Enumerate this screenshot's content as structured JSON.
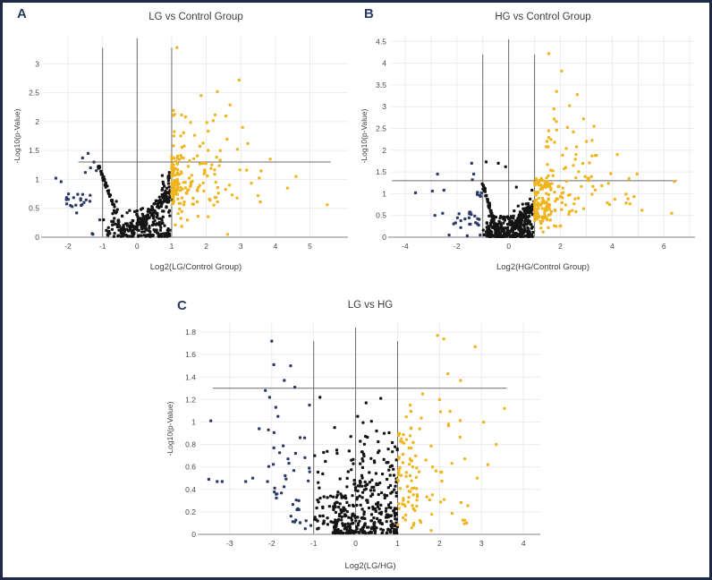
{
  "figure": {
    "border_color": "#202945",
    "background_color": "#ffffff"
  },
  "styles": {
    "grid": "#ececec",
    "threshold_line": "#6b6b6b",
    "axis": "#9b9b9b",
    "tick_text": "#4a4a4a",
    "title_text": "#3c3c3c",
    "letter_text": "#2b3a64",
    "up_color": "#F0B51E",
    "down_color": "#2B3A66",
    "ns_color": "#141414"
  },
  "chart_data": [
    {
      "type": "scatter",
      "letter": "A",
      "title": "LG vs Control Group",
      "xlabel": "Log2(LG/Control Group)",
      "ylabel": "-Log10(p-Value)",
      "xlim": [
        -2.7,
        6.1
      ],
      "ylim": [
        0,
        3.5
      ],
      "xticks": [
        -2,
        -1,
        0,
        1,
        2,
        3,
        4,
        5
      ],
      "yticks": [
        0,
        0.5,
        1,
        1.5,
        2,
        2.5,
        3
      ],
      "xgrid": [
        -2,
        -1,
        0,
        1,
        2,
        3,
        4,
        5
      ],
      "fold_change_lines_x": [
        -1,
        0,
        1
      ],
      "significance_line_y": 1.3,
      "vlines": [
        {
          "x": -1,
          "ytop": 3.28
        },
        {
          "x": 0,
          "ytop": 3.44
        },
        {
          "x": 1,
          "ytop": 3.28
        }
      ],
      "hline": {
        "y": 1.3,
        "x0": -1.7,
        "x1": 5.6
      },
      "seed": 11,
      "series": [
        {
          "name": "non-significant",
          "color": "#141414",
          "clusters": [
            {
              "t": "curve",
              "n": 60,
              "x0": -1.12,
              "x1": -0.4,
              "ya": 1.22,
              "yb": 0.02,
              "pw": 1.15,
              "jx": 0.04,
              "jy": 0.05
            },
            {
              "t": "band",
              "n": 150,
              "x0": -0.75,
              "x1": 0.95,
              "y0": 0.01,
              "y1": 0.5,
              "px": 1,
              "py": 1.9
            },
            {
              "t": "curve",
              "n": 85,
              "x0": -0.05,
              "x1": 0.97,
              "ya": 0.18,
              "yb": 0.78,
              "pw": 1,
              "jx": 0.06,
              "jy": 0.14
            },
            {
              "t": "blob",
              "n": 40,
              "cx": 0.85,
              "cy": 0.8,
              "sx": 0.1,
              "sy": 0.2
            },
            {
              "t": "band",
              "n": 35,
              "x0": -0.9,
              "x1": 0.5,
              "y0": 0.01,
              "y1": 0.28,
              "px": 1,
              "py": 1.4
            }
          ],
          "points": [
            [
              -1.3,
              0.06
            ],
            [
              -0.97,
              0.3
            ],
            [
              0.93,
              1.12
            ],
            [
              0.9,
              1.05
            ],
            [
              -0.6,
              0.62
            ]
          ]
        },
        {
          "name": "downregulated",
          "color": "#2B3A66",
          "clusters": [
            {
              "t": "band",
              "n": 13,
              "x0": -2.05,
              "x1": -1.35,
              "y0": 0.5,
              "y1": 0.8,
              "px": 1,
              "py": 1
            },
            {
              "t": "blob",
              "n": 5,
              "cx": -1.55,
              "cy": 0.62,
              "sx": 0.1,
              "sy": 0.04
            }
          ],
          "points": [
            [
              -1.42,
              1.45
            ],
            [
              -1.58,
              1.37
            ],
            [
              -1.25,
              1.3
            ],
            [
              -2.35,
              1.02
            ],
            [
              -2.2,
              0.96
            ],
            [
              -1.5,
              1.12
            ],
            [
              -1.35,
              1.2
            ],
            [
              -1.18,
              1.15
            ],
            [
              -1.28,
              0.05
            ],
            [
              -1.08,
              0.3
            ],
            [
              -1.75,
              0.42
            ],
            [
              -1.62,
              0.55
            ]
          ]
        },
        {
          "name": "upregulated",
          "color": "#F0B51E",
          "clusters": [
            {
              "t": "band",
              "n": 115,
              "x0": 1.0,
              "x1": 2.35,
              "y0": 0.55,
              "y1": 1.42,
              "px": 1.9,
              "py": 1.1
            },
            {
              "t": "band",
              "n": 40,
              "x0": 1.0,
              "x1": 1.18,
              "y0": 0.6,
              "y1": 1.35,
              "px": 1,
              "py": 1
            },
            {
              "t": "band",
              "n": 26,
              "x0": 1.05,
              "x1": 2.95,
              "y0": 1.45,
              "y1": 2.35,
              "px": 1.5,
              "py": 1.4
            },
            {
              "t": "band",
              "n": 13,
              "x0": 2.3,
              "x1": 3.8,
              "y0": 0.6,
              "y1": 1.35,
              "px": 1,
              "py": 1
            },
            {
              "t": "band",
              "n": 9,
              "x0": 1.1,
              "x1": 2.4,
              "y0": 0.1,
              "y1": 0.5,
              "px": 1.4,
              "py": 1
            }
          ],
          "points": [
            [
              1.15,
              3.28
            ],
            [
              2.95,
              2.72
            ],
            [
              2.32,
              2.52
            ],
            [
              1.85,
              2.45
            ],
            [
              4.6,
              1.05
            ],
            [
              5.5,
              0.56
            ],
            [
              3.85,
              1.35
            ],
            [
              4.35,
              0.85
            ],
            [
              2.62,
              0.05
            ],
            [
              3.2,
              1.62
            ],
            [
              3.5,
              0.72
            ],
            [
              3.05,
              1.9
            ]
          ]
        }
      ]
    },
    {
      "type": "scatter",
      "letter": "B",
      "title": "HG vs Control Group",
      "xlabel": "Log2(HG/Control Group)",
      "ylabel": "-Log10(p-Value)",
      "xlim": [
        -4.55,
        7.2
      ],
      "ylim": [
        0,
        4.65
      ],
      "xticks": [
        -4,
        -2,
        0,
        2,
        4,
        6
      ],
      "yticks": [
        0,
        0.5,
        1,
        1.5,
        2,
        2.5,
        3,
        3.5,
        4,
        4.5
      ],
      "xgrid": [
        -4,
        -3,
        -2,
        -1,
        0,
        1,
        2,
        3,
        4,
        5,
        6,
        7
      ],
      "fold_change_lines_x": [
        -1,
        0,
        1
      ],
      "significance_line_y": 1.3,
      "vlines": [
        {
          "x": -1,
          "ytop": 4.2
        },
        {
          "x": 0,
          "ytop": 4.55
        },
        {
          "x": 1,
          "ytop": 4.2
        }
      ],
      "hline": {
        "y": 1.3,
        "x0": -4.5,
        "x1": 6.5
      },
      "seed": 23,
      "series": [
        {
          "name": "non-significant",
          "color": "#141414",
          "clusters": [
            {
              "t": "curve",
              "n": 55,
              "x0": -1.05,
              "x1": -0.42,
              "ya": 1.25,
              "yb": 0.02,
              "pw": 1.15,
              "jx": 0.04,
              "jy": 0.05
            },
            {
              "t": "band",
              "n": 220,
              "x0": -0.85,
              "x1": 0.95,
              "y0": 0.01,
              "y1": 0.5,
              "px": 1,
              "py": 2.0
            },
            {
              "t": "curve",
              "n": 75,
              "x0": -0.05,
              "x1": 0.95,
              "ya": 0.12,
              "yb": 0.72,
              "pw": 1,
              "jx": 0.06,
              "jy": 0.15
            },
            {
              "t": "blob",
              "n": 30,
              "cx": 0.6,
              "cy": 0.62,
              "sx": 0.22,
              "sy": 0.18
            },
            {
              "t": "band",
              "n": 25,
              "x0": -1.0,
              "x1": -0.25,
              "y0": 0.01,
              "y1": 0.25,
              "px": 1,
              "py": 1.5
            }
          ],
          "points": [
            [
              -0.87,
              1.73
            ],
            [
              -0.4,
              1.7
            ],
            [
              -0.12,
              1.62
            ],
            [
              0.9,
              1.08
            ],
            [
              0.3,
              1.15
            ]
          ]
        },
        {
          "name": "downregulated",
          "color": "#2B3A66",
          "clusters": [
            {
              "t": "band",
              "n": 11,
              "x0": -1.55,
              "x1": -1.05,
              "y0": 0.25,
              "y1": 0.6,
              "px": 1,
              "py": 1
            },
            {
              "t": "band",
              "n": 7,
              "x0": -2.2,
              "x1": -1.5,
              "y0": 0.3,
              "y1": 0.7,
              "px": 1,
              "py": 1
            },
            {
              "t": "band",
              "n": 6,
              "x0": -1.25,
              "x1": -1.05,
              "y0": 0.8,
              "y1": 1.28,
              "px": 1,
              "py": 1
            }
          ],
          "points": [
            [
              -3.6,
              1.02
            ],
            [
              -2.75,
              1.45
            ],
            [
              -2.95,
              1.06
            ],
            [
              -2.5,
              1.08
            ],
            [
              -2.85,
              0.5
            ],
            [
              -2.55,
              0.55
            ],
            [
              -1.43,
              1.7
            ],
            [
              -1.35,
              1.45
            ],
            [
              -1.4,
              1.32
            ],
            [
              -2.3,
              0.05
            ],
            [
              -1.6,
              0.03
            ],
            [
              -1.85,
              0.22
            ],
            [
              -2.05,
              0.33
            ],
            [
              -1.1,
              0.05
            ]
          ]
        },
        {
          "name": "upregulated",
          "color": "#F0B51E",
          "clusters": [
            {
              "t": "band",
              "n": 100,
              "x0": 1.0,
              "x1": 1.65,
              "y0": 0.35,
              "y1": 1.35,
              "px": 1.5,
              "py": 1
            },
            {
              "t": "band",
              "n": 55,
              "x0": 1.4,
              "x1": 3.3,
              "y0": 0.5,
              "y1": 1.5,
              "px": 1.4,
              "py": 1
            },
            {
              "t": "band",
              "n": 30,
              "x0": 1.4,
              "x1": 3.4,
              "y0": 1.5,
              "y1": 2.9,
              "px": 1.3,
              "py": 1.5
            },
            {
              "t": "band",
              "n": 12,
              "x0": 3.3,
              "x1": 5.0,
              "y0": 0.6,
              "y1": 1.5,
              "px": 1,
              "py": 1
            },
            {
              "t": "band",
              "n": 8,
              "x0": 1.2,
              "x1": 2.6,
              "y0": 0.05,
              "y1": 0.35,
              "px": 1.3,
              "py": 1
            }
          ],
          "points": [
            [
              1.55,
              4.22
            ],
            [
              2.05,
              3.82
            ],
            [
              1.85,
              3.35
            ],
            [
              2.65,
              3.28
            ],
            [
              2.35,
              3.02
            ],
            [
              1.75,
              2.95
            ],
            [
              3.3,
              2.55
            ],
            [
              2.5,
              2.42
            ],
            [
              4.2,
              1.9
            ],
            [
              4.65,
              1.35
            ],
            [
              6.4,
              1.28
            ],
            [
              5.15,
              0.62
            ],
            [
              6.3,
              0.55
            ],
            [
              3.9,
              0.75
            ],
            [
              2.6,
              1.9
            ],
            [
              3.0,
              2.2
            ]
          ]
        }
      ]
    },
    {
      "type": "scatter",
      "letter": "C",
      "title": "LG vs HG",
      "xlabel": "Log2(LG/HG)",
      "ylabel": "-Log10(p-Value)",
      "xlim": [
        -3.7,
        4.4
      ],
      "ylim": [
        0,
        1.88
      ],
      "xticks": [
        -3,
        -2,
        -1,
        0,
        1,
        2,
        3,
        4
      ],
      "yticks": [
        0,
        0.2,
        0.4,
        0.6,
        0.8,
        1,
        1.2,
        1.4,
        1.6,
        1.8
      ],
      "xgrid": [
        -3,
        -2,
        -1,
        0,
        1,
        2,
        3,
        4
      ],
      "fold_change_lines_x": [
        -1,
        0,
        1
      ],
      "significance_line_y": 1.3,
      "vlines": [
        {
          "x": -1,
          "ytop": 1.72
        },
        {
          "x": 0,
          "ytop": 1.84
        },
        {
          "x": 1,
          "ytop": 1.72
        }
      ],
      "hline": {
        "y": 1.3,
        "x0": -3.4,
        "x1": 3.6
      },
      "seed": 37,
      "series": [
        {
          "name": "non-significant",
          "color": "#141414",
          "clusters": [
            {
              "t": "band",
              "n": 250,
              "x0": -0.55,
              "x1": 1.0,
              "y0": 0.01,
              "y1": 0.5,
              "px": 1,
              "py": 1.9
            },
            {
              "t": "band",
              "n": 80,
              "x0": -1.0,
              "x1": 0.2,
              "y0": 0.03,
              "y1": 0.75,
              "px": 1,
              "py": 1.4
            },
            {
              "t": "blob",
              "n": 30,
              "cx": 0.3,
              "cy": 0.68,
              "sx": 0.28,
              "sy": 0.2
            },
            {
              "t": "band",
              "n": 40,
              "x0": 0.72,
              "x1": 1.0,
              "y0": 0.05,
              "y1": 0.85,
              "px": 1,
              "py": 1.2
            }
          ],
          "points": [
            [
              -0.85,
              1.22
            ],
            [
              0.25,
              1.17
            ],
            [
              0.6,
              1.21
            ],
            [
              0.05,
              1.05
            ],
            [
              -0.5,
              0.95
            ],
            [
              0.5,
              0.92
            ]
          ]
        },
        {
          "name": "downregulated",
          "color": "#2B3A66",
          "clusters": [
            {
              "t": "band",
              "n": 28,
              "x0": -2.1,
              "x1": -1.05,
              "y0": 0.3,
              "y1": 1.0,
              "px": 1,
              "py": 1.2
            },
            {
              "t": "band",
              "n": 10,
              "x0": -1.6,
              "x1": -1.05,
              "y0": 0.05,
              "y1": 0.3,
              "px": 1,
              "py": 1
            }
          ],
          "points": [
            [
              -2.0,
              1.72
            ],
            [
              -1.95,
              1.51
            ],
            [
              -1.55,
              1.5
            ],
            [
              -1.7,
              1.37
            ],
            [
              -1.45,
              1.31
            ],
            [
              -2.15,
              1.28
            ],
            [
              -2.05,
              1.22
            ],
            [
              -1.9,
              1.13
            ],
            [
              -3.45,
              1.01
            ],
            [
              -1.85,
              1.05
            ],
            [
              -1.1,
              1.15
            ],
            [
              -2.3,
              0.94
            ],
            [
              -3.5,
              0.49
            ],
            [
              -3.3,
              0.47
            ],
            [
              -3.18,
              0.47
            ],
            [
              -2.62,
              0.47
            ],
            [
              -2.45,
              0.5
            ],
            [
              -2.1,
              0.47
            ],
            [
              -1.2,
              0.05
            ],
            [
              -1.35,
              0.22
            ]
          ]
        },
        {
          "name": "upregulated",
          "color": "#F0B51E",
          "clusters": [
            {
              "t": "band",
              "n": 62,
              "x0": 1.0,
              "x1": 1.5,
              "y0": 0.05,
              "y1": 0.9,
              "px": 1.5,
              "py": 1
            },
            {
              "t": "band",
              "n": 36,
              "x0": 1.2,
              "x1": 2.7,
              "y0": 0.25,
              "y1": 1.1,
              "px": 1.5,
              "py": 1
            },
            {
              "t": "band",
              "n": 8,
              "x0": 1.5,
              "x1": 2.7,
              "y0": 0.03,
              "y1": 0.2,
              "px": 1,
              "py": 1
            }
          ],
          "points": [
            [
              1.95,
              1.77
            ],
            [
              2.1,
              1.74
            ],
            [
              2.85,
              1.67
            ],
            [
              2.2,
              1.43
            ],
            [
              2.5,
              1.37
            ],
            [
              1.6,
              1.25
            ],
            [
              2.0,
              1.2
            ],
            [
              3.55,
              1.12
            ],
            [
              3.05,
              1.0
            ],
            [
              3.35,
              0.8
            ],
            [
              3.15,
              0.62
            ],
            [
              2.9,
              0.5
            ],
            [
              2.65,
              0.1
            ],
            [
              1.3,
              1.15
            ]
          ]
        }
      ]
    }
  ]
}
